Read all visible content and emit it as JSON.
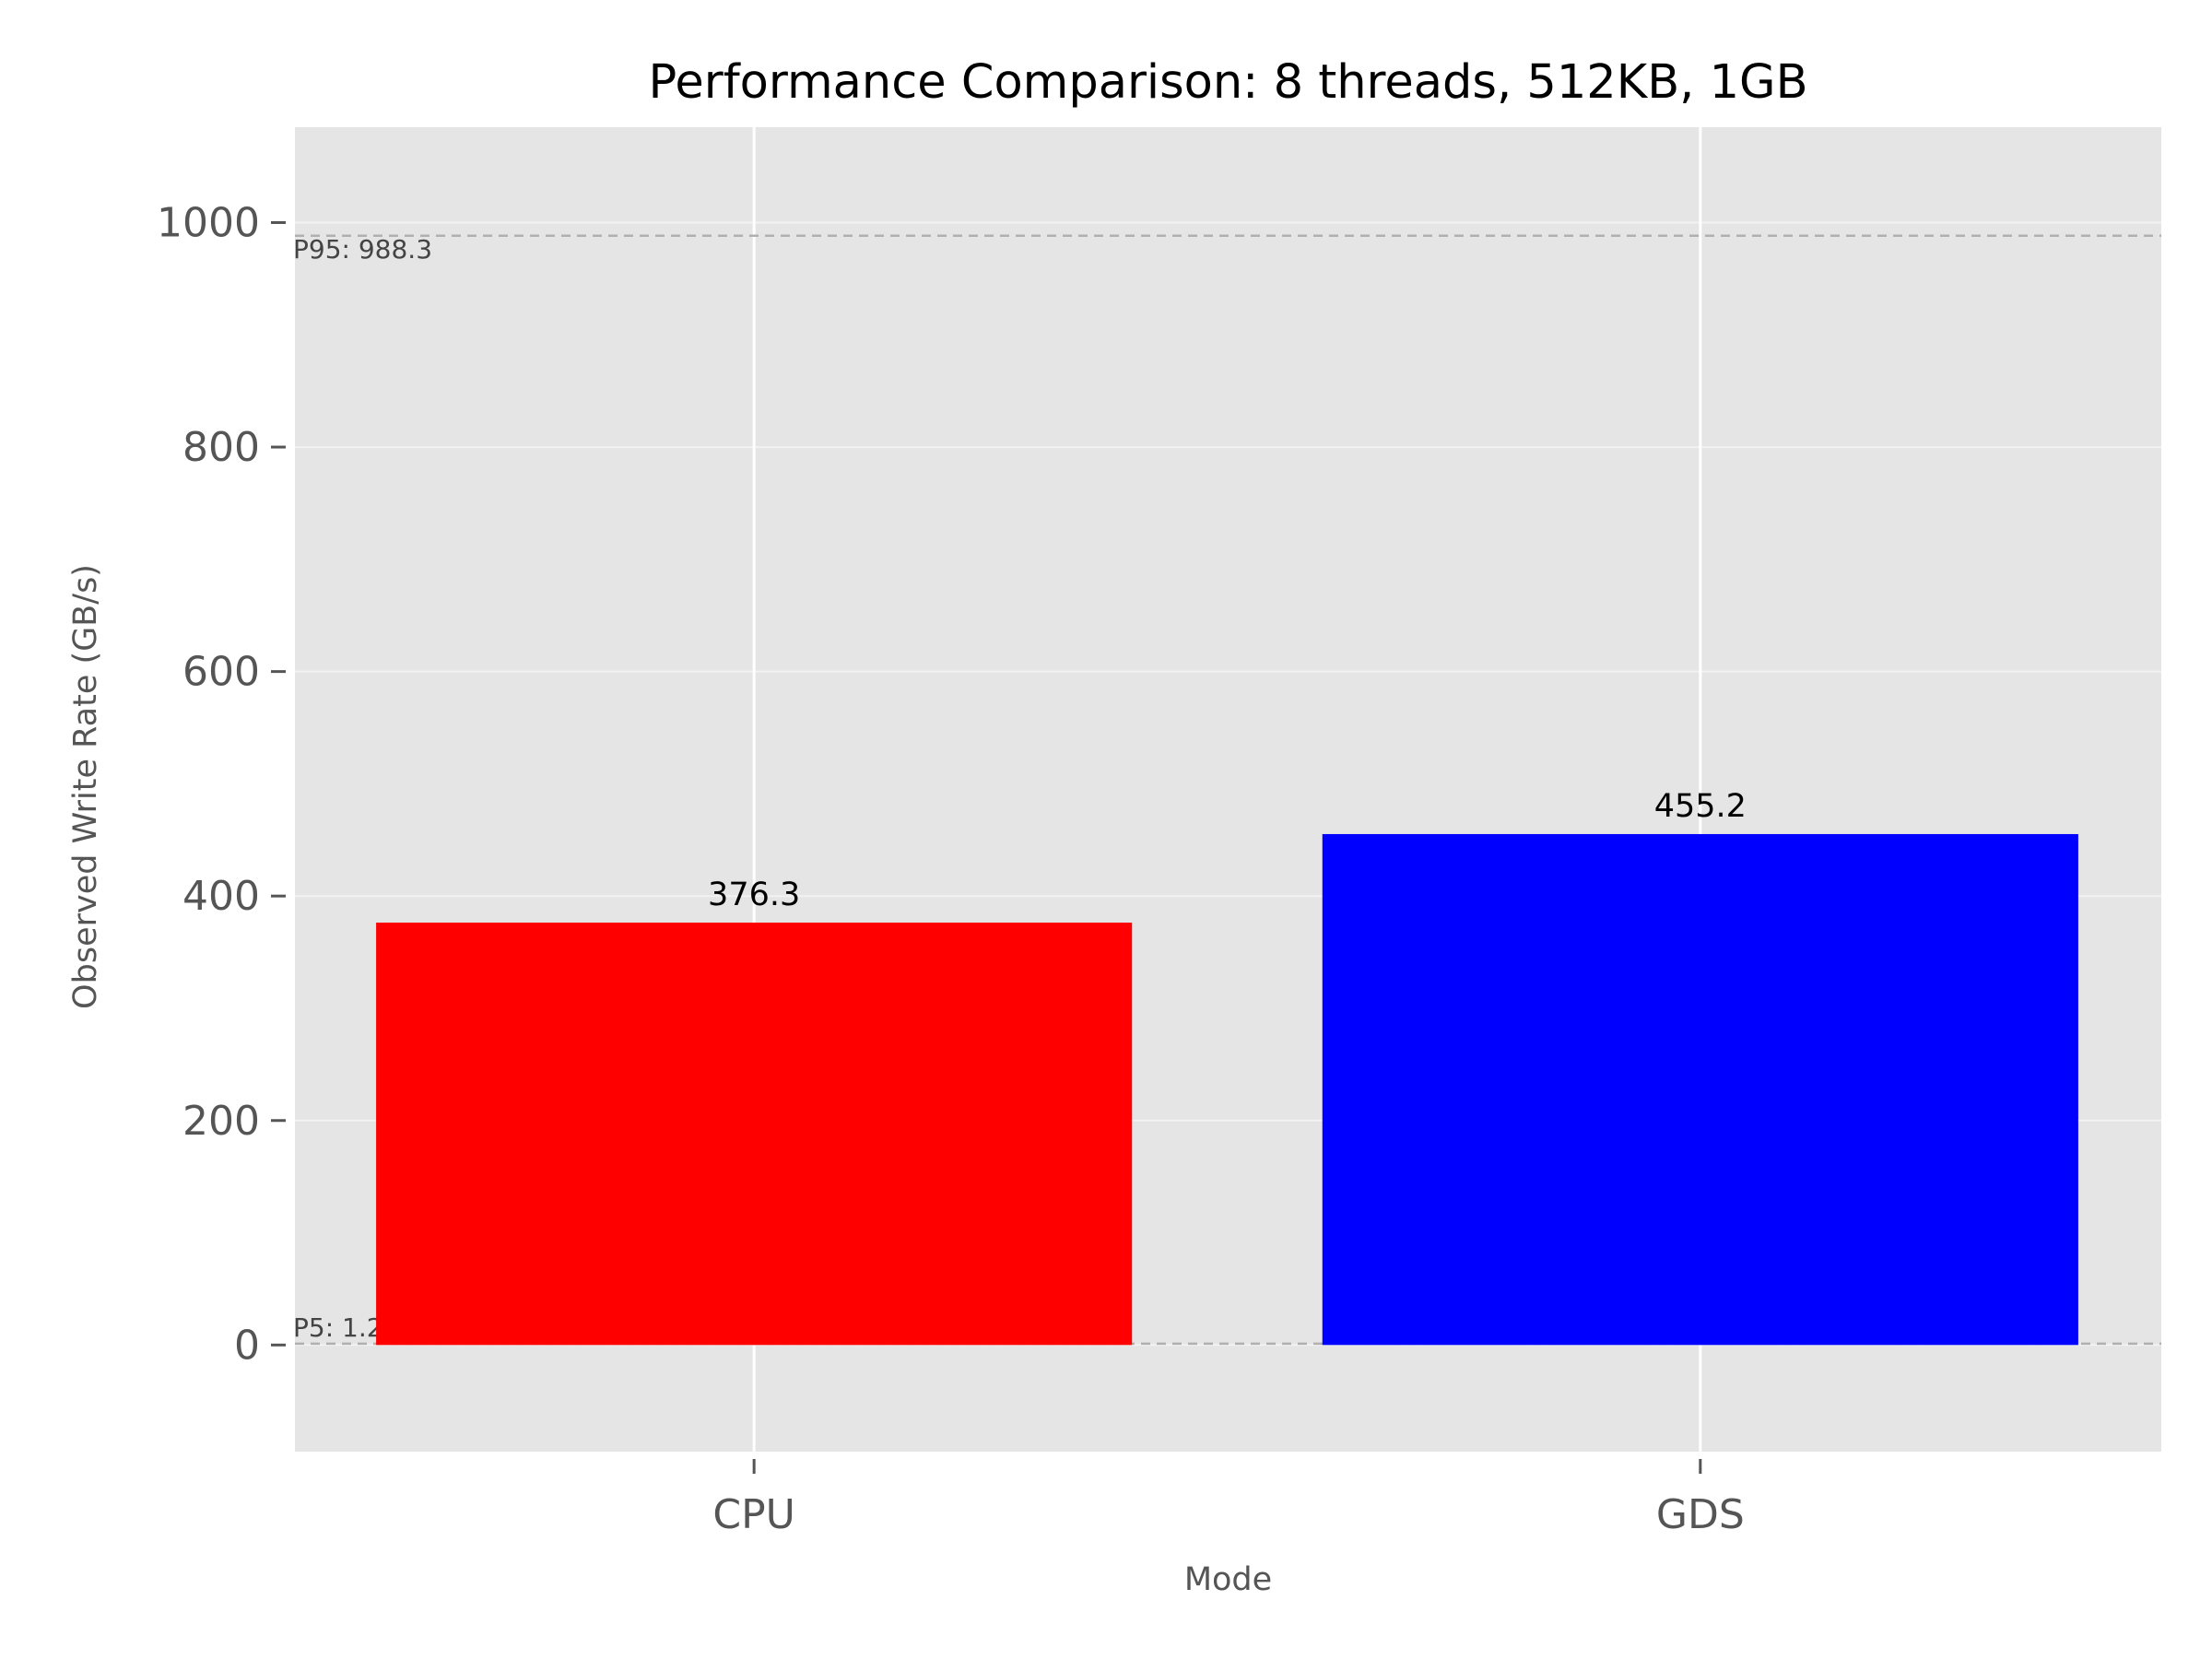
{
  "chart_data": {
    "type": "bar",
    "title": "Performance Comparison: 8 threads, 512KB, 1GB",
    "xlabel": "Mode",
    "ylabel": "Observed Write Rate (GB/s)",
    "categories": [
      "CPU",
      "GDS"
    ],
    "values": [
      376.3,
      455.2
    ],
    "value_labels": [
      "376.3",
      "455.2"
    ],
    "colors": [
      "#ff0000",
      "#0000ff"
    ],
    "ylim": [
      -95,
      1085
    ],
    "yticks": [
      0,
      200,
      400,
      600,
      800,
      1000
    ],
    "ytick_labels": [
      "0",
      "200",
      "400",
      "600",
      "800",
      "1000"
    ],
    "grid": true,
    "background": "#e5e5e5",
    "reference_lines": [
      {
        "value": 988.3,
        "label": "P95: 988.3"
      },
      {
        "value": 1.2,
        "label": "P5: 1.2"
      }
    ]
  }
}
